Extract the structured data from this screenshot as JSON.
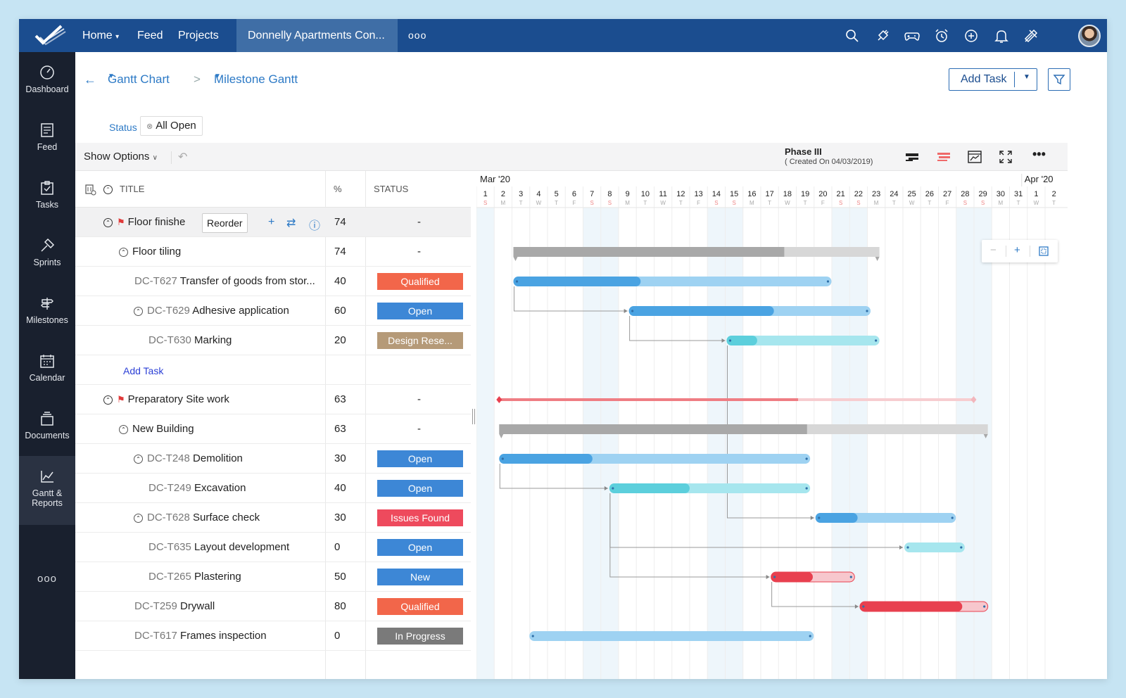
{
  "topbar": {
    "nav": [
      {
        "label": "Home",
        "has_caret": true
      },
      {
        "label": "Feed"
      },
      {
        "label": "Projects"
      }
    ],
    "active_project": "Donnelly Apartments Con...",
    "more": "ooo",
    "icons": [
      "search-icon",
      "plug-icon",
      "gamepad-icon",
      "alarm-clock-icon",
      "plus-circle-icon",
      "bell-icon",
      "tools-icon",
      "avatar"
    ]
  },
  "sidebar": {
    "items": [
      {
        "label": "Dashboard",
        "icon": "dashboard-icon"
      },
      {
        "label": "Feed",
        "icon": "feed-icon"
      },
      {
        "label": "Tasks",
        "icon": "tasks-icon"
      },
      {
        "label": "Sprints",
        "icon": "sprints-icon"
      },
      {
        "label": "Milestones",
        "icon": "milestones-icon"
      },
      {
        "label": "Calendar",
        "icon": "calendar-icon"
      },
      {
        "label": "Documents",
        "icon": "documents-icon"
      },
      {
        "label": "Gantt &",
        "label2": "Reports",
        "icon": "gantt-icon",
        "active": true
      }
    ],
    "more": "ooo"
  },
  "breadcrumb": {
    "back": "←",
    "view": "Gantt Chart",
    "separator": ">",
    "subview": "Milestone Gantt"
  },
  "actions": {
    "add_task": "Add Task"
  },
  "filter": {
    "label": "Status",
    "chip": "All Open"
  },
  "toolbar": {
    "show_options": "Show Options",
    "phase_title": "Phase III",
    "phase_sub": "( Created On 04/03/2019)"
  },
  "grid": {
    "headers": {
      "title": "TITLE",
      "pct": "%",
      "status": "STATUS"
    },
    "reorder": "Reorder",
    "add_task": "Add Task",
    "rows": [
      {
        "id": "",
        "name": "Floor finishe",
        "pct": "74",
        "status": "-",
        "type": "milestone"
      },
      {
        "id": "",
        "name": "Floor tiling",
        "pct": "74",
        "status": "-",
        "type": "tasklist"
      },
      {
        "id": "DC-T627",
        "name": "Transfer of goods from stor...",
        "pct": "40",
        "status": "Qualified",
        "color": "#f2664a"
      },
      {
        "id": "DC-T629",
        "name": "Adhesive application",
        "pct": "60",
        "status": "Open",
        "color": "#3d87d6"
      },
      {
        "id": "DC-T630",
        "name": "Marking",
        "pct": "20",
        "status": "Design Rese...",
        "color": "#b59a78"
      },
      {
        "id": "",
        "name": "",
        "pct": "",
        "status": "",
        "type": "addtask"
      },
      {
        "id": "",
        "name": "Preparatory Site work",
        "pct": "63",
        "status": "-",
        "type": "milestone"
      },
      {
        "id": "",
        "name": "New Building",
        "pct": "63",
        "status": "-",
        "type": "tasklist"
      },
      {
        "id": "DC-T248",
        "name": "Demolition",
        "pct": "30",
        "status": "Open",
        "color": "#3d87d6"
      },
      {
        "id": "DC-T249",
        "name": "Excavation",
        "pct": "40",
        "status": "Open",
        "color": "#3d87d6"
      },
      {
        "id": "DC-T628",
        "name": "Surface check",
        "pct": "30",
        "status": "Issues Found",
        "color": "#ee4a5d"
      },
      {
        "id": "DC-T635",
        "name": "Layout development",
        "pct": "0",
        "status": "Open",
        "color": "#3d87d6"
      },
      {
        "id": "DC-T265",
        "name": "Plastering",
        "pct": "50",
        "status": "New",
        "color": "#3d87d6"
      },
      {
        "id": "DC-T259",
        "name": "Drywall",
        "pct": "80",
        "status": "Qualified",
        "color": "#f2664a"
      },
      {
        "id": "DC-T617",
        "name": "Frames inspection",
        "pct": "0",
        "status": "In Progress",
        "color": "#7a7a7a"
      }
    ]
  },
  "timeline": {
    "month_start": "Mar '20",
    "month_next": "Apr '20",
    "days": [
      "1",
      "2",
      "3",
      "4",
      "5",
      "6",
      "7",
      "8",
      "9",
      "10",
      "11",
      "12",
      "13",
      "14",
      "15",
      "16",
      "17",
      "18",
      "19",
      "20",
      "21",
      "22",
      "23",
      "24",
      "25",
      "26",
      "27",
      "28",
      "29",
      "30",
      "31",
      "1",
      "2"
    ],
    "weekdays": [
      "S",
      "M",
      "T",
      "W",
      "T",
      "F",
      "S",
      "S",
      "M",
      "T",
      "W",
      "T",
      "F",
      "S",
      "S",
      "M",
      "T",
      "W",
      "T",
      "F",
      "S",
      "S",
      "M",
      "T",
      "W",
      "T",
      "F",
      "S",
      "S",
      "M",
      "T",
      "W",
      "T"
    ],
    "zoom": {
      "minus": "−",
      "plus": "+"
    }
  },
  "bars": [
    {
      "row": 1,
      "start": 3.0,
      "end": 23.6,
      "progress": 74,
      "kind": "group"
    },
    {
      "row": 2,
      "start": 3.0,
      "end": 20.9,
      "progress": 40,
      "kind": "blue"
    },
    {
      "row": 3,
      "start": 9.5,
      "end": 23.1,
      "progress": 60,
      "kind": "blue"
    },
    {
      "row": 4,
      "start": 15.0,
      "end": 23.6,
      "progress": 20,
      "kind": "teal"
    },
    {
      "row": 6,
      "start": 2.2,
      "end": 28.9,
      "progress": 63,
      "kind": "milestone"
    },
    {
      "row": 7,
      "start": 2.2,
      "end": 29.7,
      "progress": 63,
      "kind": "group"
    },
    {
      "row": 8,
      "start": 2.2,
      "end": 19.7,
      "progress": 30,
      "kind": "blue"
    },
    {
      "row": 9,
      "start": 8.4,
      "end": 19.7,
      "progress": 40,
      "kind": "teal"
    },
    {
      "row": 10,
      "start": 20.0,
      "end": 27.9,
      "progress": 30,
      "kind": "blue"
    },
    {
      "row": 11,
      "start": 25.0,
      "end": 28.4,
      "progress": 0,
      "kind": "teal"
    },
    {
      "row": 12,
      "start": 17.5,
      "end": 22.2,
      "progress": 50,
      "kind": "red"
    },
    {
      "row": 13,
      "start": 22.5,
      "end": 29.7,
      "progress": 80,
      "kind": "red"
    },
    {
      "row": 14,
      "start": 3.9,
      "end": 19.9,
      "progress": 0,
      "kind": "blue"
    }
  ],
  "links": [
    {
      "from": 2,
      "to": 3
    },
    {
      "from": 3,
      "to": 4
    },
    {
      "from": 4,
      "to": 10
    },
    {
      "from": 8,
      "to": 9
    },
    {
      "from": 9,
      "to": 11
    },
    {
      "from": 9,
      "to": 12
    },
    {
      "from": 12,
      "to": 13
    }
  ],
  "colors": {
    "topbar": "#1b4d8f",
    "sidebar": "#19202e",
    "accent": "#2d7ac6",
    "bar_blue": "#4aa3e2",
    "bar_blue_light": "#9ed2f2",
    "bar_teal": "#5ccfdc",
    "bar_teal_light": "#a6e6ee",
    "bar_red": "#e8404f",
    "bar_red_light": "#f7c7cd",
    "milestone": "#ef7d83",
    "group_dark": "#a8a8a8",
    "group_light": "#d7d7d7"
  }
}
